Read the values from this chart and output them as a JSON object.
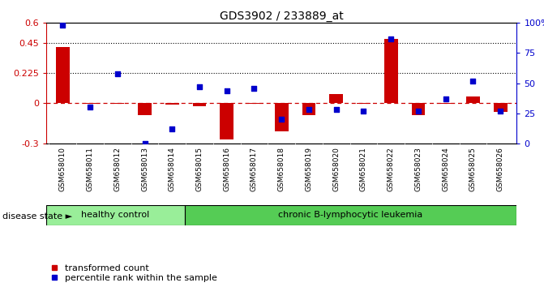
{
  "title": "GDS3902 / 233889_at",
  "samples": [
    "GSM658010",
    "GSM658011",
    "GSM658012",
    "GSM658013",
    "GSM658014",
    "GSM658015",
    "GSM658016",
    "GSM658017",
    "GSM658018",
    "GSM658019",
    "GSM658020",
    "GSM658021",
    "GSM658022",
    "GSM658023",
    "GSM658024",
    "GSM658025",
    "GSM658026"
  ],
  "red_values": [
    0.42,
    -0.005,
    -0.005,
    -0.09,
    -0.01,
    -0.02,
    -0.27,
    -0.005,
    -0.21,
    -0.09,
    0.07,
    -0.005,
    0.48,
    -0.09,
    -0.005,
    0.05,
    -0.065
  ],
  "blue_values": [
    98,
    30,
    58,
    0,
    12,
    47,
    44,
    46,
    20,
    28,
    28,
    27,
    87,
    27,
    37,
    52,
    27
  ],
  "ylim_left": [
    -0.3,
    0.6
  ],
  "ylim_right": [
    0,
    100
  ],
  "yticks_left": [
    -0.3,
    0,
    0.225,
    0.45,
    0.6
  ],
  "yticks_right": [
    0,
    25,
    50,
    75,
    100
  ],
  "ytick_labels_left": [
    "-0.3",
    "0",
    "0.225",
    "0.45",
    "0.6"
  ],
  "ytick_labels_right": [
    "0",
    "25",
    "50",
    "75",
    "100%"
  ],
  "hlines": [
    0.225,
    0.45
  ],
  "zero_line": 0,
  "healthy_count": 5,
  "disease_label1": "healthy control",
  "disease_label2": "chronic B-lymphocytic leukemia",
  "disease_state_label": "disease state",
  "legend_red": "transformed count",
  "legend_blue": "percentile rank within the sample",
  "bar_color_red": "#cc0000",
  "bar_color_blue": "#0000cc",
  "healthy_fill": "#99ee99",
  "disease_fill": "#55cc55",
  "label_bg": "#dddddd",
  "bar_width": 0.5
}
